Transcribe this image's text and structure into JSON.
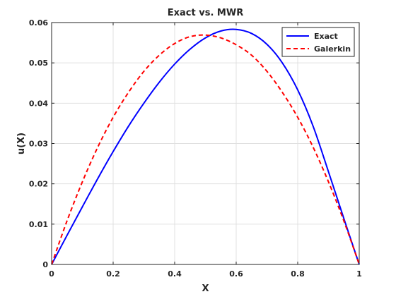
{
  "chart_data": {
    "type": "line",
    "title": "Exact vs. MWR",
    "xlabel": "X",
    "ylabel": "u(X)",
    "xlim": [
      0,
      1
    ],
    "ylim": [
      0,
      0.06
    ],
    "xticks": [
      0,
      0.2,
      0.4,
      0.6,
      0.8,
      1
    ],
    "xtick_labels": [
      "0",
      "0.2",
      "0.4",
      "0.6",
      "0.8",
      "1"
    ],
    "yticks": [
      0,
      0.01,
      0.02,
      0.03,
      0.04,
      0.05,
      0.06
    ],
    "ytick_labels": [
      "0",
      "0.01",
      "0.02",
      "0.03",
      "0.04",
      "0.05",
      "0.06"
    ],
    "grid": true,
    "legend_position": "top-right",
    "x": [
      0,
      0.05,
      0.1,
      0.15,
      0.2,
      0.25,
      0.3,
      0.35,
      0.4,
      0.45,
      0.5,
      0.55,
      0.6,
      0.65,
      0.7,
      0.75,
      0.8,
      0.85,
      0.9,
      0.95,
      1
    ],
    "series": [
      {
        "name": "Exact",
        "color": "#0000ff",
        "dash": "solid",
        "values": [
          0,
          0.0072,
          0.0143,
          0.0213,
          0.028,
          0.0343,
          0.04,
          0.0452,
          0.0497,
          0.0534,
          0.0562,
          0.0579,
          0.0583,
          0.0573,
          0.0546,
          0.05,
          0.0433,
          0.0343,
          0.023,
          0.0114,
          0
        ]
      },
      {
        "name": "Galerkin",
        "color": "#ff0000",
        "dash": "dashed",
        "values": [
          0,
          0.0108,
          0.0205,
          0.0291,
          0.0365,
          0.0427,
          0.0479,
          0.0519,
          0.0548,
          0.0565,
          0.0569,
          0.0562,
          0.0545,
          0.0519,
          0.0479,
          0.0427,
          0.0365,
          0.0291,
          0.0205,
          0.0108,
          0
        ]
      }
    ]
  }
}
